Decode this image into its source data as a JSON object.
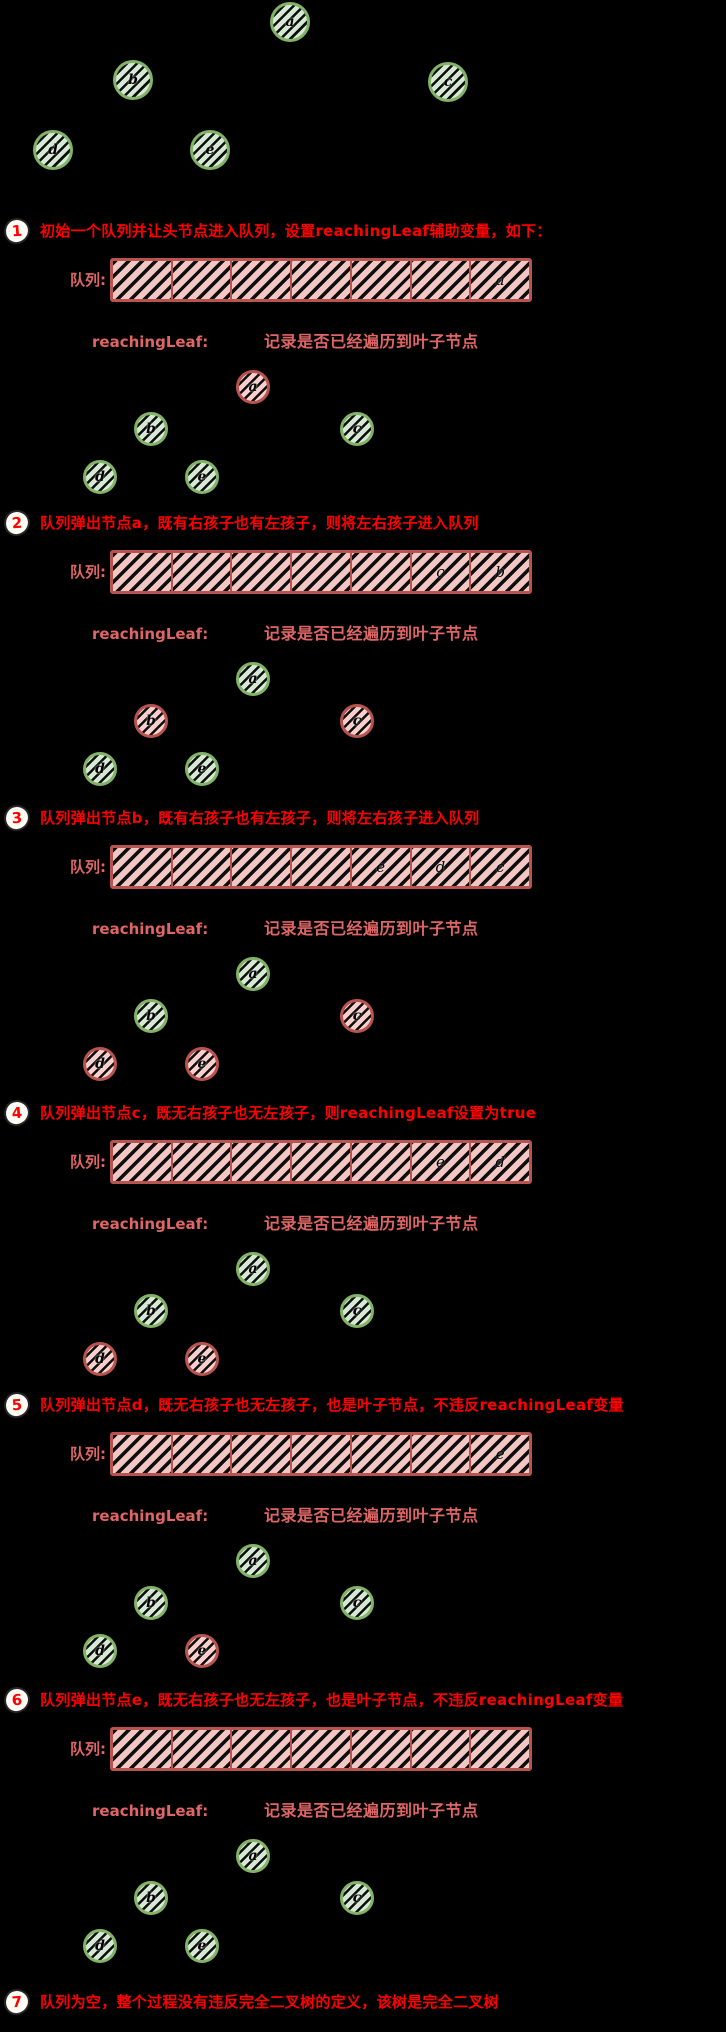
{
  "colors": {
    "bg": "#000000",
    "step_text": "#ff0000",
    "label": "#e06666",
    "queue_border": "#b85450",
    "queue_fill": "#f2c7c3",
    "green_border": "#82b366",
    "green_fill": "#d5e8d4",
    "red_border": "#b85450",
    "red_fill": "#f8cecc",
    "badge_bg": "#fffdf6",
    "badge_border": "#262626"
  },
  "labels": {
    "queue_label": "队列:",
    "reaching_leaf_label": "reachingLeaf:",
    "reaching_leaf_desc": "记录是否已经遍历到叶子节点"
  },
  "initial_tree": {
    "nodes": [
      {
        "id": "a",
        "state": "green"
      },
      {
        "id": "b",
        "state": "green"
      },
      {
        "id": "c",
        "state": "green"
      },
      {
        "id": "d",
        "state": "green"
      },
      {
        "id": "e",
        "state": "green"
      }
    ]
  },
  "steps": [
    {
      "num": "1",
      "title": "初始一个队列并让头节点进入队列，设置reachingLeaf辅助变量，如下：",
      "queue": [
        "",
        "",
        "",
        "",
        "",
        "",
        "a"
      ],
      "tree": [
        {
          "id": "a",
          "state": "red"
        },
        {
          "id": "b",
          "state": "green"
        },
        {
          "id": "c",
          "state": "green"
        },
        {
          "id": "d",
          "state": "green"
        },
        {
          "id": "e",
          "state": "green"
        }
      ]
    },
    {
      "num": "2",
      "title": "队列弹出节点a，既有右孩子也有左孩子，则将左右孩子进入队列",
      "queue": [
        "",
        "",
        "",
        "",
        "",
        "c",
        "b"
      ],
      "tree": [
        {
          "id": "a",
          "state": "green"
        },
        {
          "id": "b",
          "state": "red"
        },
        {
          "id": "c",
          "state": "red"
        },
        {
          "id": "d",
          "state": "green"
        },
        {
          "id": "e",
          "state": "green"
        }
      ]
    },
    {
      "num": "3",
      "title": "队列弹出节点b，既有右孩子也有左孩子，则将左右孩子进入队列",
      "queue": [
        "",
        "",
        "",
        "",
        "e",
        "d",
        "c"
      ],
      "tree": [
        {
          "id": "a",
          "state": "green"
        },
        {
          "id": "b",
          "state": "green"
        },
        {
          "id": "c",
          "state": "red"
        },
        {
          "id": "d",
          "state": "red"
        },
        {
          "id": "e",
          "state": "red"
        }
      ]
    },
    {
      "num": "4",
      "title": "队列弹出节点c，既无右孩子也无左孩子，则reachingLeaf设置为true",
      "queue": [
        "",
        "",
        "",
        "",
        "",
        "e",
        "d"
      ],
      "tree": [
        {
          "id": "a",
          "state": "green"
        },
        {
          "id": "b",
          "state": "green"
        },
        {
          "id": "c",
          "state": "green"
        },
        {
          "id": "d",
          "state": "red"
        },
        {
          "id": "e",
          "state": "red"
        }
      ]
    },
    {
      "num": "5",
      "title": "队列弹出节点d，既无右孩子也无左孩子，也是叶子节点，不违反reachingLeaf变量",
      "queue": [
        "",
        "",
        "",
        "",
        "",
        "",
        "e"
      ],
      "tree": [
        {
          "id": "a",
          "state": "green"
        },
        {
          "id": "b",
          "state": "green"
        },
        {
          "id": "c",
          "state": "green"
        },
        {
          "id": "d",
          "state": "green"
        },
        {
          "id": "e",
          "state": "red"
        }
      ]
    },
    {
      "num": "6",
      "title": "队列弹出节点e，既无右孩子也无左孩子，也是叶子节点，不违反reachingLeaf变量",
      "queue": [
        "",
        "",
        "",
        "",
        "",
        "",
        ""
      ],
      "tree": [
        {
          "id": "a",
          "state": "green"
        },
        {
          "id": "b",
          "state": "green"
        },
        {
          "id": "c",
          "state": "green"
        },
        {
          "id": "d",
          "state": "green"
        },
        {
          "id": "e",
          "state": "green"
        }
      ]
    },
    {
      "num": "7",
      "title": "队列为空，整个过程没有违反完全二叉树的定义，该树是完全二叉树"
    }
  ]
}
